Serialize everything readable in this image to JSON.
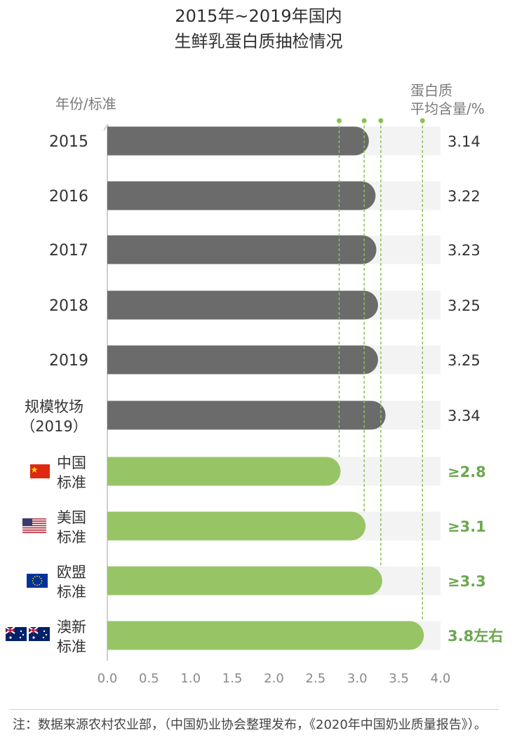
{
  "title_lines": [
    "2015年~2019年国内",
    "生鲜乳蛋白质抽检情况"
  ],
  "y_axis_label": "年份/标准",
  "value_header_lines": [
    "蛋白质",
    "平均含量/%"
  ],
  "note": "注：数据来源农村农业部，（中国奶业协会整理发布，《2020年中国奶业质量报告》）。",
  "colors": {
    "gray_bar": "#6b6b6b",
    "green_bar": "#97c565",
    "track": "#f3f3f3",
    "green_text": "#6aa84f",
    "dashed": "#8cc152"
  },
  "chart_data": {
    "type": "bar",
    "orientation": "horizontal",
    "xlim": [
      0,
      4.0
    ],
    "x_ticks": [
      "0.0",
      "0.5",
      "1.0",
      "1.5",
      "2.0",
      "2.5",
      "3.0",
      "3.5",
      "4.0"
    ],
    "categories": [
      {
        "lines": [
          "2015"
        ],
        "value": 3.14,
        "label": "3.14",
        "group": "gray"
      },
      {
        "lines": [
          "2016"
        ],
        "value": 3.22,
        "label": "3.22",
        "group": "gray"
      },
      {
        "lines": [
          "2017"
        ],
        "value": 3.23,
        "label": "3.23",
        "group": "gray"
      },
      {
        "lines": [
          "2018"
        ],
        "value": 3.25,
        "label": "3.25",
        "group": "gray"
      },
      {
        "lines": [
          "2019"
        ],
        "value": 3.25,
        "label": "3.25",
        "group": "gray"
      },
      {
        "lines": [
          "规模牧场",
          "（2019）"
        ],
        "value": 3.34,
        "label": "3.34",
        "group": "gray"
      },
      {
        "lines": [
          "中国",
          "标准"
        ],
        "value": 2.8,
        "label": "≥2.8",
        "group": "green",
        "flag": "cn-flag"
      },
      {
        "lines": [
          "美国",
          "标准"
        ],
        "value": 3.1,
        "label": "≥3.1",
        "group": "green",
        "flag": "us-flag"
      },
      {
        "lines": [
          "欧盟",
          "标准"
        ],
        "value": 3.3,
        "label": "≥3.3",
        "group": "green",
        "flag": "eu-flag"
      },
      {
        "lines": [
          "澳新",
          "标准"
        ],
        "value": 3.8,
        "label": "3.8左右",
        "group": "green",
        "flag": "au-nz-flag"
      }
    ]
  }
}
